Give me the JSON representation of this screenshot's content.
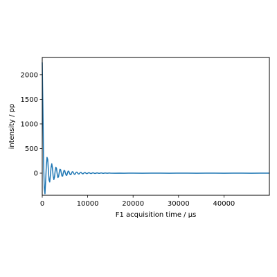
{
  "chart_data": {
    "type": "line",
    "title": "",
    "xlabel": "F1 acquisition time / µs",
    "ylabel": "intensity / pp",
    "xlim": [
      0,
      50000
    ],
    "ylim": [
      -450,
      2350
    ],
    "x_ticks": [
      0,
      10000,
      20000,
      30000,
      40000
    ],
    "x_tick_labels": [
      "0",
      "10000",
      "20000",
      "30000",
      "40000"
    ],
    "y_ticks": [
      0,
      500,
      1000,
      1500,
      2000
    ],
    "y_tick_labels": [
      "0",
      "500",
      "1000",
      "1500",
      "2000"
    ],
    "grid": false,
    "line_color": "#1f77b4",
    "series": [
      {
        "x": [
          0,
          150,
          300,
          450,
          600,
          750,
          900,
          1050,
          1200,
          1350,
          1500,
          1650,
          1800,
          1950,
          2100,
          2250,
          2400,
          2550,
          2700,
          2850,
          3000,
          3150,
          3300,
          3450,
          3600,
          3750,
          3900,
          4050,
          4200,
          4350,
          4500,
          4650,
          4800,
          4950,
          5100,
          5250,
          5400,
          5550,
          5700,
          5850,
          6000,
          6150,
          6300,
          6450,
          6600,
          6750,
          6900,
          7050,
          7200,
          7350,
          7500,
          7650,
          7800,
          7950,
          8100,
          8250,
          8400,
          8550,
          8700,
          8850,
          9000,
          9150,
          9300,
          9450,
          9600,
          9750,
          9900,
          10050,
          10200,
          10350,
          10500,
          10650,
          10800,
          10950,
          11100,
          11250,
          11400,
          11550,
          11700,
          11850,
          12000,
          12150,
          12300,
          12450,
          12600,
          12750,
          12900,
          13050,
          13200,
          13350,
          13500,
          13650,
          13800,
          13950,
          14100,
          14250,
          14400,
          14550,
          14700,
          14850,
          15000,
          16000,
          17000,
          18000,
          19000,
          20000,
          22000,
          24000,
          26000,
          28000,
          30000,
          32000,
          34000,
          36000,
          38000,
          40000,
          42000,
          44000,
          46000,
          48000,
          50000
        ],
        "values": [
          2250,
          1300,
          200,
          -300,
          -420,
          -150,
          150,
          320,
          280,
          60,
          -140,
          -180,
          -40,
          120,
          190,
          100,
          -60,
          -130,
          -80,
          50,
          120,
          90,
          -20,
          -90,
          -70,
          20,
          80,
          70,
          0,
          -60,
          -60,
          10,
          55,
          50,
          0,
          -40,
          -45,
          0,
          40,
          38,
          0,
          -30,
          -32,
          0,
          28,
          28,
          0,
          -22,
          -24,
          0,
          20,
          20,
          0,
          -16,
          -18,
          0,
          14,
          15,
          0,
          -12,
          -13,
          0,
          10,
          11,
          0,
          -9,
          -9,
          0,
          8,
          8,
          0,
          -6,
          -7,
          0,
          6,
          6,
          0,
          -5,
          -5,
          0,
          4,
          4,
          0,
          -4,
          -4,
          0,
          3,
          3,
          0,
          -3,
          -3,
          0,
          2,
          2,
          0,
          -2,
          -2,
          0,
          2,
          2,
          0,
          -1,
          1,
          -1,
          1,
          0,
          -1,
          1,
          0,
          -1,
          1,
          0,
          -1,
          1,
          0,
          -1,
          1,
          0,
          -1,
          1,
          0
        ]
      }
    ]
  }
}
